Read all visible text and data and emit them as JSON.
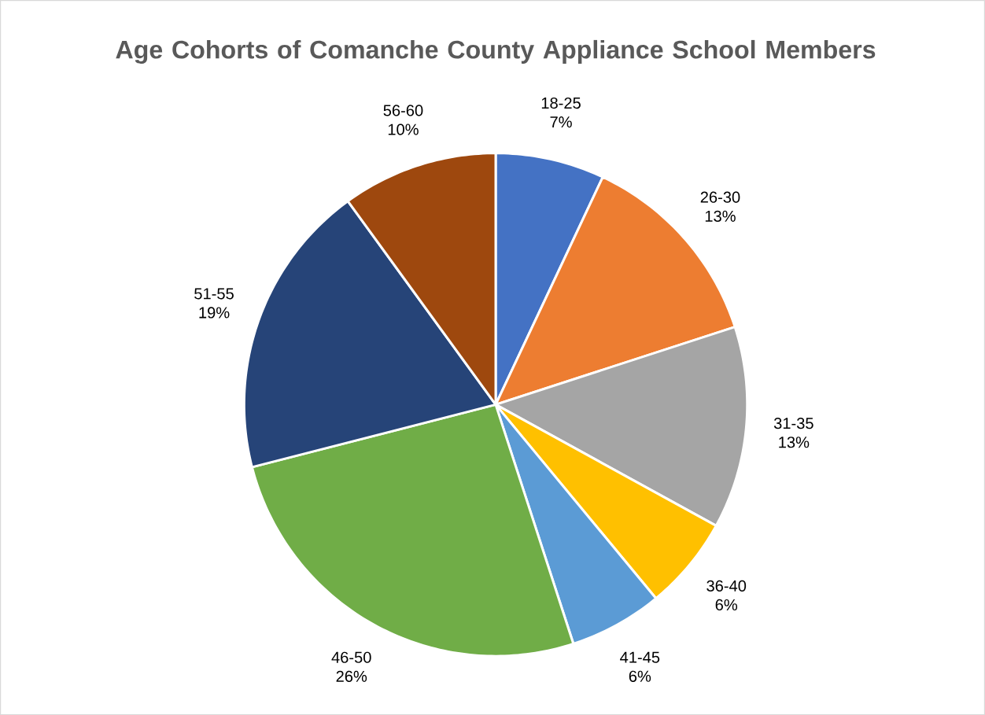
{
  "chart_data": {
    "type": "pie",
    "title": "Age Cohorts of Comanche County Appliance School Members",
    "categories": [
      "18-25",
      "26-30",
      "31-35",
      "36-40",
      "41-45",
      "46-50",
      "51-55",
      "56-60"
    ],
    "values": [
      7,
      13,
      13,
      6,
      6,
      26,
      19,
      10
    ],
    "value_labels": [
      "7%",
      "13%",
      "13%",
      "6%",
      "6%",
      "26%",
      "19%",
      "10%"
    ],
    "colors": [
      "#4472c4",
      "#ed7d31",
      "#a5a5a5",
      "#ffc000",
      "#5b9bd5",
      "#70ad47",
      "#264478",
      "#9e480e"
    ]
  }
}
